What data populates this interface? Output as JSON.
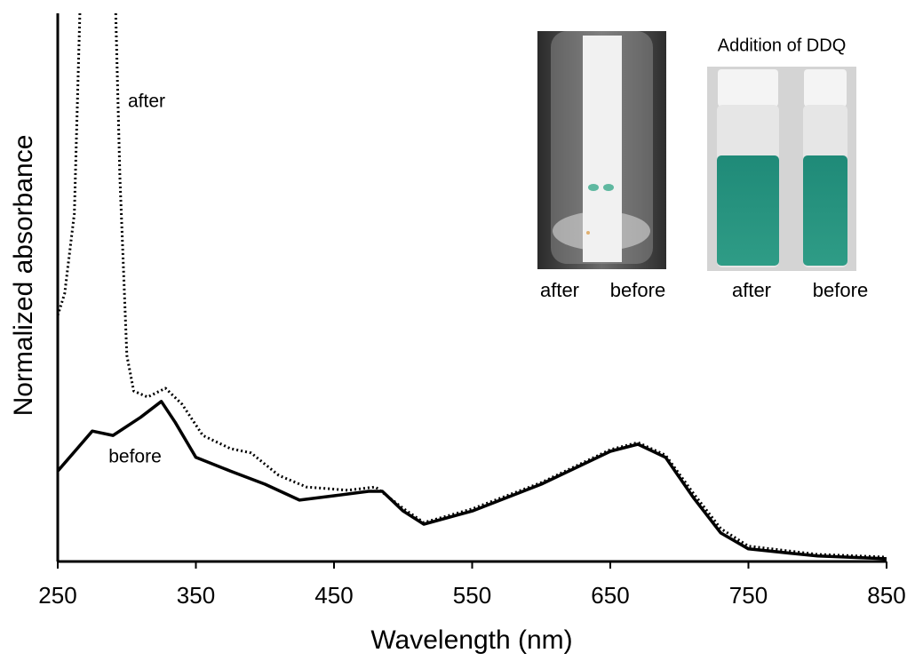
{
  "chart_data": {
    "type": "line",
    "xlabel": "Wavelength (nm)",
    "ylabel": "Normalized absorbance",
    "xlim": [
      250,
      850
    ],
    "xticks": [
      250,
      350,
      450,
      550,
      650,
      750,
      850
    ],
    "ylim": [
      0,
      1
    ],
    "series": [
      {
        "name": "before",
        "style": "solid",
        "color": "#000000",
        "x": [
          250,
          262,
          275,
          290,
          310,
          325,
          335,
          350,
          375,
          400,
          425,
          450,
          475,
          485,
          500,
          515,
          550,
          600,
          650,
          670,
          690,
          710,
          730,
          750,
          800,
          850
        ],
        "values": [
          0.165,
          0.2,
          0.238,
          0.23,
          0.263,
          0.292,
          0.254,
          0.19,
          0.165,
          0.141,
          0.112,
          0.12,
          0.128,
          0.128,
          0.092,
          0.068,
          0.092,
          0.141,
          0.201,
          0.214,
          0.19,
          0.117,
          0.052,
          0.023,
          0.01,
          0.005
        ]
      },
      {
        "name": "after",
        "style": "dotted",
        "color": "#000000",
        "x": [
          250,
          255,
          262,
          266,
          279,
          292,
          295,
          300,
          305,
          315,
          328,
          340,
          355,
          375,
          390,
          410,
          430,
          460,
          480,
          500,
          515,
          550,
          600,
          650,
          670,
          690,
          710,
          730,
          750,
          800,
          850
        ],
        "values": [
          0.449,
          0.489,
          0.635,
          1.0,
          null,
          1.0,
          0.7,
          0.376,
          0.311,
          0.3,
          0.316,
          0.287,
          0.23,
          0.206,
          0.198,
          0.157,
          0.136,
          0.13,
          0.136,
          0.097,
          0.071,
          0.096,
          0.144,
          0.204,
          0.217,
          0.194,
          0.125,
          0.06,
          0.028,
          0.013,
          0.008
        ]
      }
    ],
    "insets": [
      {
        "labels": [
          "after",
          "before"
        ]
      },
      {
        "title": "Addition of DDQ",
        "labels": [
          "after",
          "before"
        ]
      }
    ]
  }
}
